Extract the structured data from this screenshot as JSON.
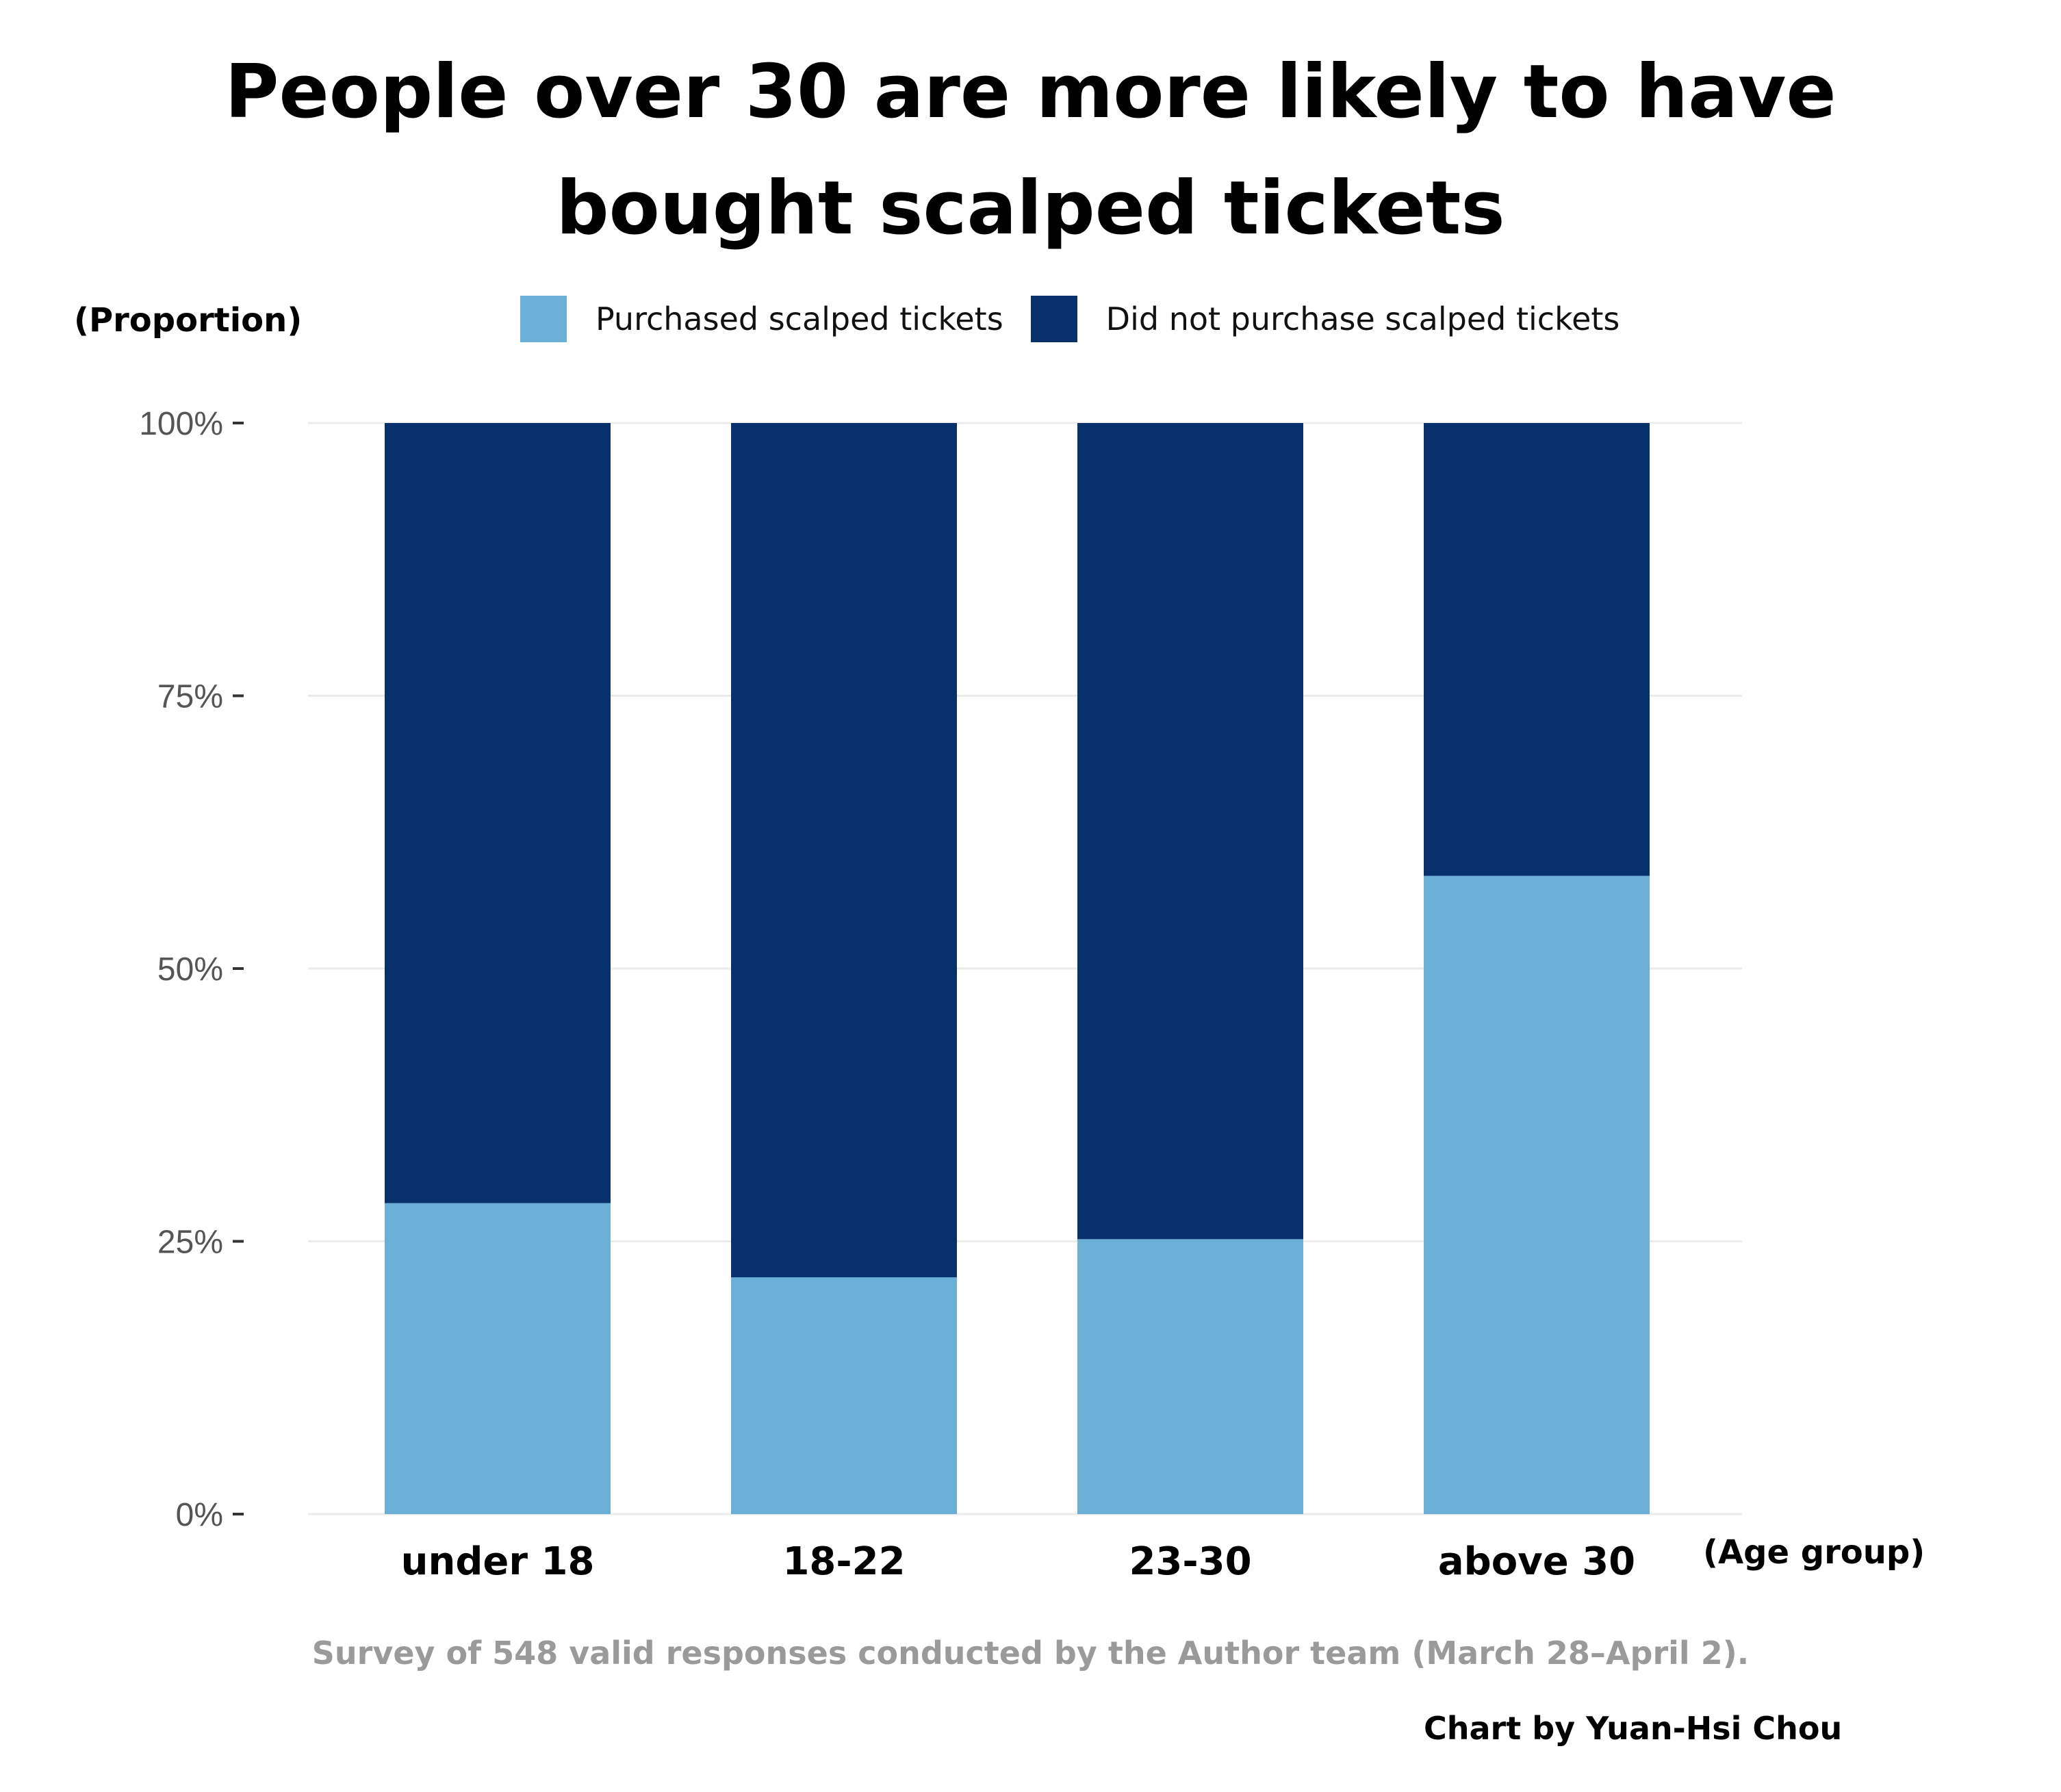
{
  "chart_data": {
    "type": "bar",
    "stacked": true,
    "title": "People over 30 are more likely to have bought scalped tickets",
    "title_lines": [
      "People over 30 are more likely to have",
      "bought scalped tickets"
    ],
    "ylabel": "(Proportion)",
    "xlabel": "(Age group)",
    "categories": [
      "under 18",
      "18-22",
      "23-30",
      "above 30"
    ],
    "y_ticks": [
      "0%",
      "25%",
      "50%",
      "75%",
      "100%"
    ],
    "ylim": [
      0,
      1
    ],
    "grid": true,
    "legend_position": "top",
    "series": [
      {
        "name": "Purchased scalped tickets",
        "values": [
          0.285,
          0.217,
          0.252,
          0.585
        ],
        "color": "#6baed6"
      },
      {
        "name": "Did not purchase scalped tickets",
        "values": [
          0.715,
          0.783,
          0.748,
          0.415
        ],
        "color": "#08306b"
      }
    ],
    "source": "Survey of 548 valid responses conducted by the Author team (March 28–April 2).",
    "credit": "Chart by Yuan-Hsi Chou"
  }
}
